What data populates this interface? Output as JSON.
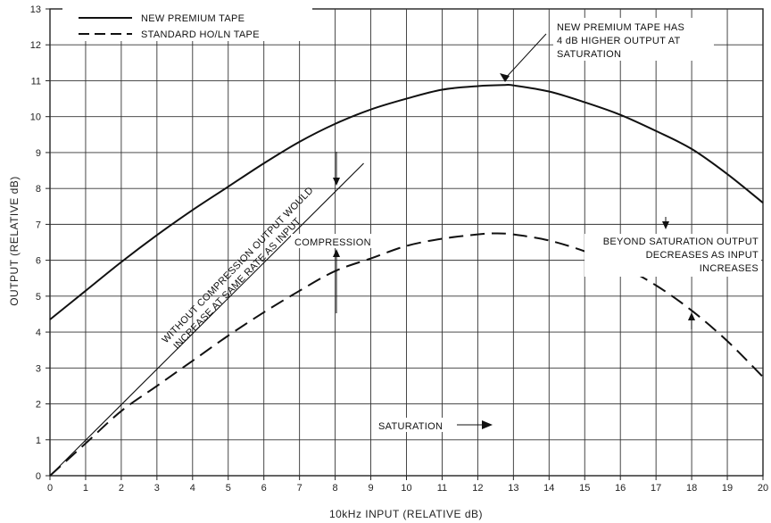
{
  "chart_data": {
    "type": "line",
    "title": "",
    "xlabel": "10kHz INPUT (RELATIVE dB)",
    "ylabel": "OUTPUT (RELATIVE dB)",
    "xlim": [
      0,
      20
    ],
    "ylim": [
      0,
      13
    ],
    "xticks": [
      0,
      1,
      2,
      3,
      4,
      5,
      6,
      7,
      8,
      9,
      10,
      11,
      12,
      13,
      14,
      15,
      16,
      17,
      18,
      19,
      20
    ],
    "yticks": [
      0,
      1,
      2,
      3,
      4,
      5,
      6,
      7,
      8,
      9,
      10,
      11,
      12,
      13
    ],
    "grid": true,
    "legend_position": "top-left",
    "series": [
      {
        "name": "NEW PREMIUM TAPE",
        "style": "solid",
        "x": [
          0,
          1,
          2,
          3,
          4,
          5,
          6,
          7,
          8,
          9,
          10,
          11,
          12,
          12.75,
          13,
          14,
          15,
          16,
          17,
          18,
          19,
          20
        ],
        "y": [
          4.35,
          5.15,
          5.95,
          6.7,
          7.4,
          8.05,
          8.7,
          9.3,
          9.8,
          10.2,
          10.5,
          10.75,
          10.85,
          10.88,
          10.87,
          10.7,
          10.4,
          10.05,
          9.6,
          9.1,
          8.4,
          7.6
        ]
      },
      {
        "name": "STANDARD HO/LN TAPE",
        "style": "dashed",
        "x": [
          0,
          1,
          2,
          3,
          4,
          5,
          6,
          7,
          8,
          9,
          10,
          11,
          12,
          12.5,
          13,
          14,
          15,
          16,
          17,
          18,
          19,
          20
        ],
        "y": [
          0.0,
          0.9,
          1.8,
          2.5,
          3.2,
          3.9,
          4.55,
          5.15,
          5.7,
          6.05,
          6.4,
          6.6,
          6.72,
          6.75,
          6.72,
          6.55,
          6.25,
          5.85,
          5.3,
          4.6,
          3.75,
          2.75
        ]
      },
      {
        "name": "",
        "style": "thin",
        "x": [
          0,
          8.8
        ],
        "y": [
          0,
          8.7
        ]
      }
    ],
    "annotations": {
      "premium": [
        "NEW PREMIUM TAPE HAS",
        "4 dB HIGHER OUTPUT AT",
        "SATURATION"
      ],
      "compression": "COMPRESSION",
      "beyond": [
        "BEYOND SATURATION OUTPUT",
        "DECREASES AS INPUT",
        "INCREASES"
      ],
      "saturation": "SATURATION",
      "without": [
        "WITHOUT COMPRESSION OUTPUT WOULD",
        "INCREASE AT SAME RATE AS INPUT"
      ]
    }
  }
}
